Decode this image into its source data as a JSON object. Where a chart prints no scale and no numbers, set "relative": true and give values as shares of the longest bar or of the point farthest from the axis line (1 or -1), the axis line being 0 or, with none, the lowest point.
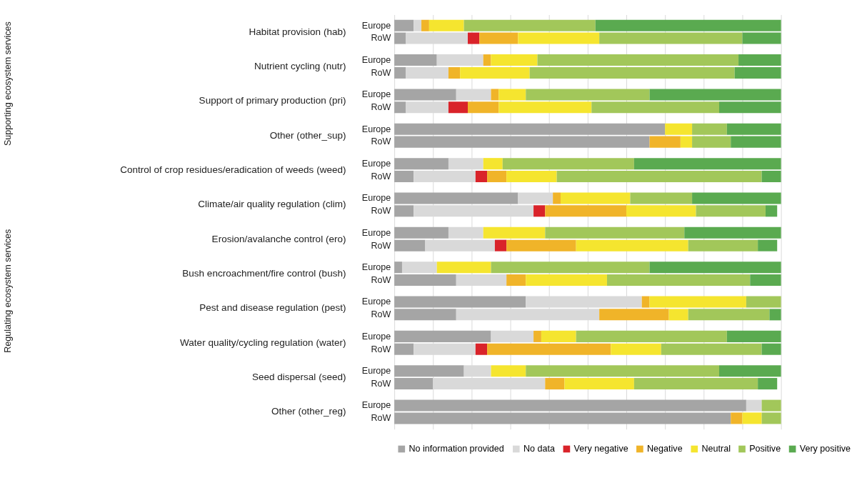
{
  "chart_data": {
    "type": "bar",
    "orientation": "horizontal",
    "stacked": true,
    "relative": true,
    "grid": "x",
    "legend": "bottom",
    "categories": [
      "Europe",
      "RoW",
      "Europe",
      "RoW",
      "Europe",
      "RoW",
      "Europe",
      "RoW",
      "Europe",
      "RoW",
      "Europe",
      "RoW",
      "Europe",
      "RoW",
      "Europe",
      "RoW",
      "Europe",
      "RoW",
      "Europe",
      "RoW",
      "Europe",
      "RoW",
      "Europe",
      "RoW"
    ],
    "series": [
      {
        "name": "No information provided",
        "color": "#a5a5a5",
        "values": [
          0.05,
          0.03,
          0.11,
          0.03,
          0.16,
          0.03,
          0.7,
          0.66,
          0.14,
          0.05,
          0.32,
          0.05,
          0.14,
          0.08,
          0.02,
          0.16,
          0.34,
          0.16,
          0.25,
          0.05,
          0.18,
          0.1,
          0.91,
          0.87
        ]
      },
      {
        "name": "No data",
        "color": "#d9d9d9",
        "values": [
          0.02,
          0.16,
          0.12,
          0.11,
          0.09,
          0.11,
          0,
          0,
          0.09,
          0.16,
          0.09,
          0.31,
          0.09,
          0.18,
          0.09,
          0.13,
          0.3,
          0.37,
          0.11,
          0.16,
          0.07,
          0.29,
          0.04,
          0
        ]
      },
      {
        "name": "Very negative",
        "color": "#d9232a",
        "values": [
          0,
          0.03,
          0,
          0,
          0,
          0.05,
          0,
          0,
          0,
          0.03,
          0,
          0.03,
          0,
          0.03,
          0,
          0,
          0,
          0,
          0,
          0.03,
          0,
          0,
          0,
          0
        ]
      },
      {
        "name": "Negative",
        "color": "#f0b429",
        "values": [
          0.02,
          0.1,
          0.02,
          0.03,
          0.02,
          0.08,
          0,
          0.08,
          0,
          0.05,
          0.02,
          0.21,
          0,
          0.18,
          0,
          0.05,
          0.02,
          0.18,
          0.02,
          0.32,
          0,
          0.05,
          0,
          0.03
        ]
      },
      {
        "name": "Neutral",
        "color": "#f5e52f",
        "values": [
          0.09,
          0.21,
          0.12,
          0.18,
          0.07,
          0.24,
          0.07,
          0.03,
          0.05,
          0.13,
          0.18,
          0.18,
          0.16,
          0.29,
          0.14,
          0.21,
          0.25,
          0.05,
          0.09,
          0.13,
          0.09,
          0.18,
          0,
          0.05
        ]
      },
      {
        "name": "Positive",
        "color": "#a2c75a",
        "values": [
          0.34,
          0.37,
          0.52,
          0.53,
          0.32,
          0.33,
          0.09,
          0.1,
          0.34,
          0.53,
          0.16,
          0.18,
          0.36,
          0.18,
          0.41,
          0.37,
          0.09,
          0.21,
          0.39,
          0.26,
          0.5,
          0.32,
          0.05,
          0.05
        ]
      },
      {
        "name": "Very positive",
        "color": "#5aaa50",
        "values": [
          0.48,
          0.1,
          0.11,
          0.12,
          0.34,
          0.16,
          0.14,
          0.13,
          0.38,
          0.05,
          0.23,
          0.03,
          0.25,
          0.05,
          0.34,
          0.08,
          0,
          0.03,
          0.14,
          0.05,
          0.16,
          0.05,
          0,
          0
        ]
      }
    ],
    "annotations": [
      "Habitat provision (hab)",
      "Nutrient cycling (nutr)",
      "Support of primary production (pri)",
      "Other (other_sup)",
      "Control of crop residues/eradication of weeds (weed)",
      "Climate/air quality regulation (clim)",
      "Erosion/avalanche control (ero)",
      "Bush encroachment/fire control (bush)",
      "Pest and disease regulation (pest)",
      "Water quality/cycling regulation (water)",
      "Seed dispersal (seed)",
      "Other (other_reg)",
      "Supporting ecosystem services",
      "Regulating ecosystem services"
    ]
  }
}
